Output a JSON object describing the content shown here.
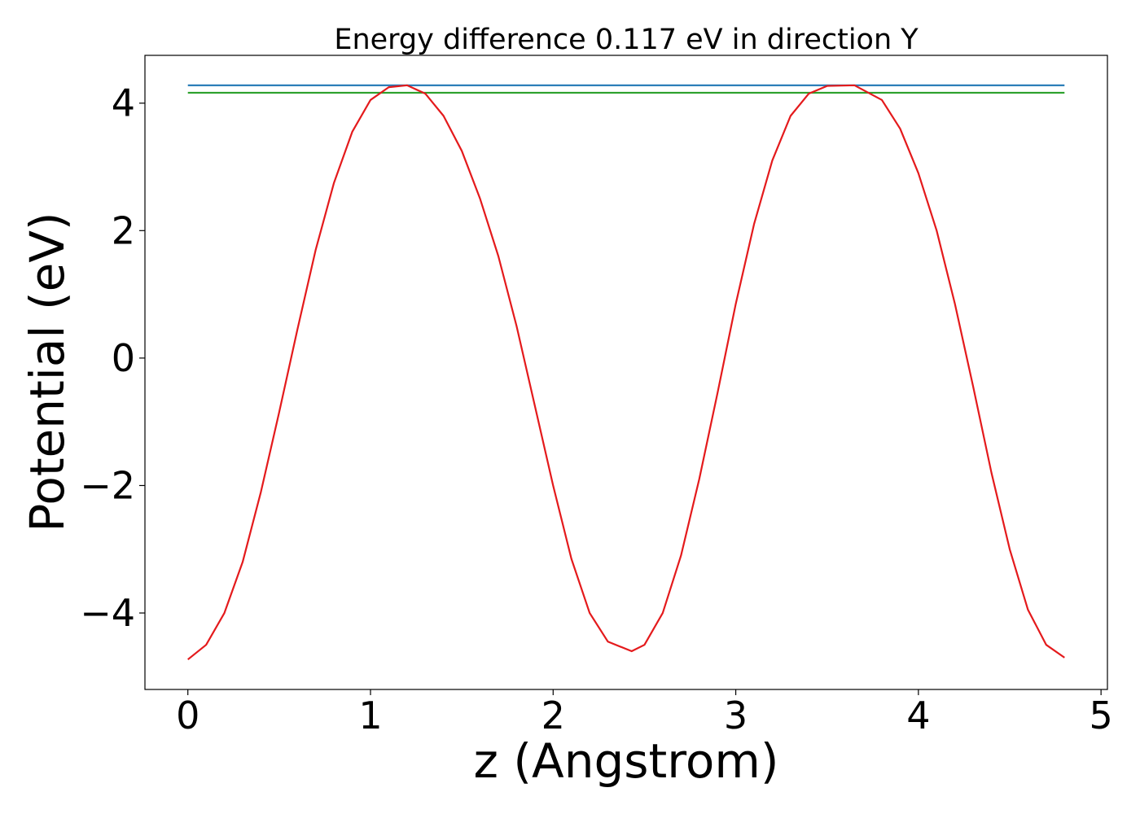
{
  "chart_data": {
    "type": "line",
    "title": "Energy difference 0.117 eV in direction Y",
    "xlabel": "z (Angstrom)",
    "ylabel": "Potential (eV)",
    "xlim": [
      -0.235,
      5.035
    ],
    "ylim": [
      -5.2,
      4.75
    ],
    "xticks": [
      0,
      1,
      2,
      3,
      4,
      5
    ],
    "xtick_labels": [
      "0",
      "1",
      "2",
      "3",
      "4",
      "5"
    ],
    "yticks": [
      -4,
      -2,
      0,
      2,
      4
    ],
    "ytick_labels": [
      "−4",
      "−2",
      "0",
      "2",
      "4"
    ],
    "grid": false,
    "series": [
      {
        "color": "#1f77b4",
        "x": [
          0,
          4.8
        ],
        "y": [
          4.28,
          4.28
        ]
      },
      {
        "color": "#2ca02c",
        "x": [
          0,
          4.8
        ],
        "y": [
          4.163,
          4.163
        ]
      },
      {
        "color": "#e41a1c",
        "x": [
          0,
          0.1,
          0.2,
          0.3,
          0.4,
          0.5,
          0.6,
          0.7,
          0.8,
          0.9,
          1.0,
          1.1,
          1.2,
          1.3,
          1.4,
          1.5,
          1.6,
          1.7,
          1.8,
          1.9,
          2.0,
          2.1,
          2.2,
          2.3,
          2.43,
          2.5,
          2.6,
          2.7,
          2.8,
          2.9,
          3.0,
          3.1,
          3.2,
          3.3,
          3.4,
          3.5,
          3.65,
          3.8,
          3.9,
          4.0,
          4.1,
          4.2,
          4.3,
          4.4,
          4.5,
          4.6,
          4.7,
          4.8
        ],
        "y": [
          -4.73,
          -4.5,
          -4.0,
          -3.2,
          -2.1,
          -0.85,
          0.45,
          1.7,
          2.75,
          3.55,
          4.05,
          4.25,
          4.28,
          4.15,
          3.8,
          3.25,
          2.5,
          1.6,
          0.5,
          -0.75,
          -2.0,
          -3.15,
          -4.0,
          -4.45,
          -4.6,
          -4.5,
          -4.0,
          -3.1,
          -1.9,
          -0.55,
          0.85,
          2.1,
          3.1,
          3.8,
          4.15,
          4.27,
          4.28,
          4.05,
          3.6,
          2.9,
          2.0,
          0.85,
          -0.45,
          -1.8,
          -3.0,
          -3.95,
          -4.5,
          -4.7
        ]
      }
    ]
  }
}
